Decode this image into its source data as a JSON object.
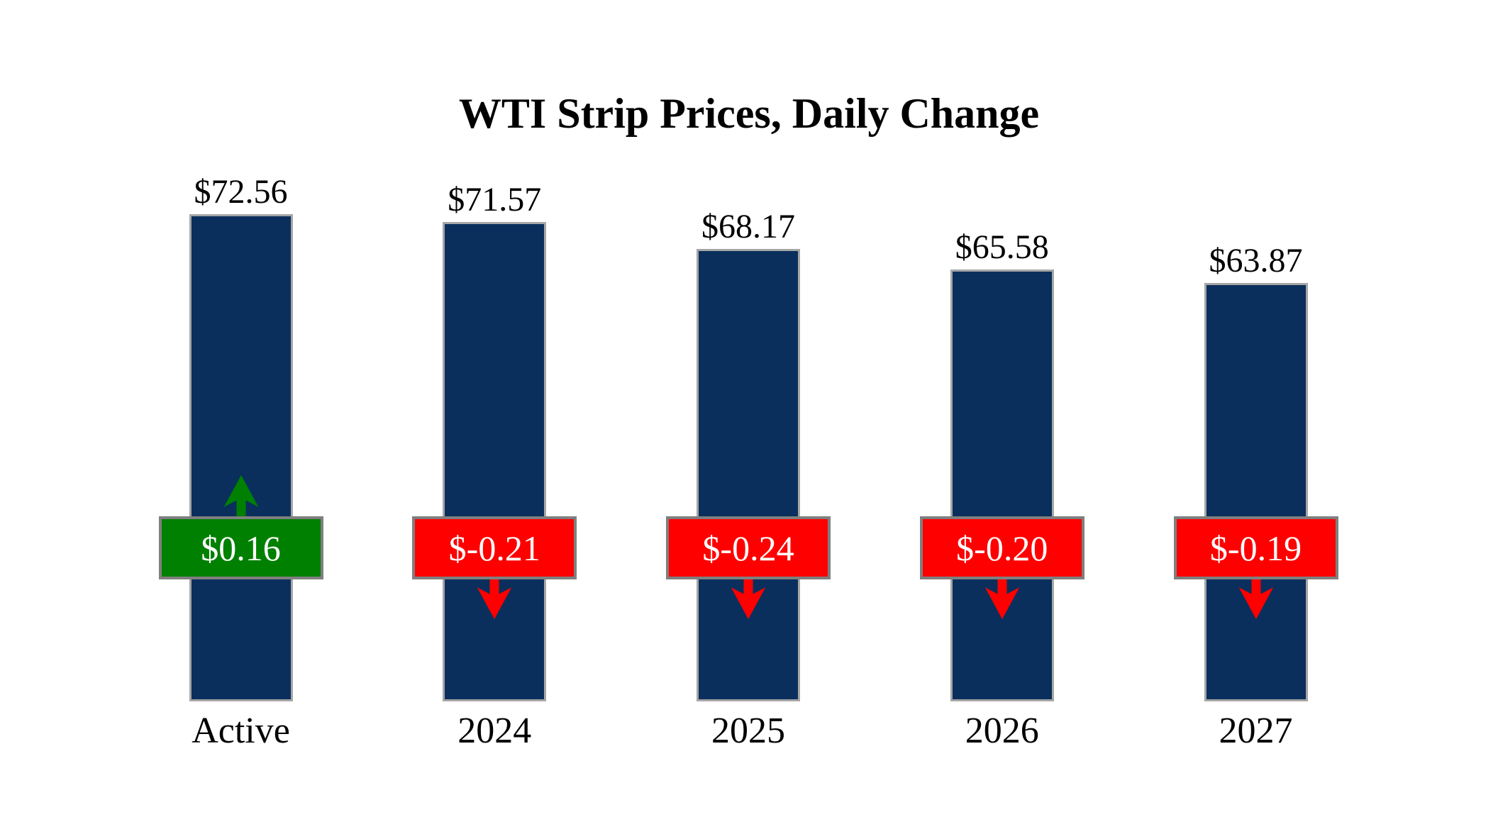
{
  "title": "WTI Strip Prices, Daily Change",
  "chart_data": {
    "type": "bar",
    "title": "WTI Strip Prices, Daily Change",
    "categories": [
      "Active",
      "2024",
      "2025",
      "2026",
      "2027"
    ],
    "series": [
      {
        "name": "Strip Price",
        "values": [
          72.56,
          71.57,
          68.17,
          65.58,
          63.87
        ]
      },
      {
        "name": "Daily Change",
        "values": [
          0.16,
          -0.21,
          -0.24,
          -0.2,
          -0.19
        ]
      }
    ],
    "value_labels": [
      "$72.56",
      "$71.57",
      "$68.17",
      "$65.58",
      "$63.87"
    ],
    "change_labels": [
      "$0.16",
      "$-0.21",
      "$-0.24",
      "$-0.20",
      "$-0.19"
    ],
    "grid": false,
    "legend": false,
    "axes_visible": false,
    "colors": {
      "bar_fill": "#0a2f5c",
      "bar_border": "#a6a6a6",
      "positive": "#008000",
      "negative": "#ff0000",
      "box_border": "#7f7f7f",
      "box_text": "#ffffff",
      "label_text": "#000000"
    }
  },
  "bars": [
    {
      "category": "Active",
      "price_label": "$72.56",
      "change_label": "$0.16",
      "direction": "up"
    },
    {
      "category": "2024",
      "price_label": "$71.57",
      "change_label": "$-0.21",
      "direction": "down"
    },
    {
      "category": "2025",
      "price_label": "$68.17",
      "change_label": "$-0.24",
      "direction": "down"
    },
    {
      "category": "2026",
      "price_label": "$65.58",
      "change_label": "$-0.20",
      "direction": "down"
    },
    {
      "category": "2027",
      "price_label": "$63.87",
      "change_label": "$-0.19",
      "direction": "down"
    }
  ]
}
